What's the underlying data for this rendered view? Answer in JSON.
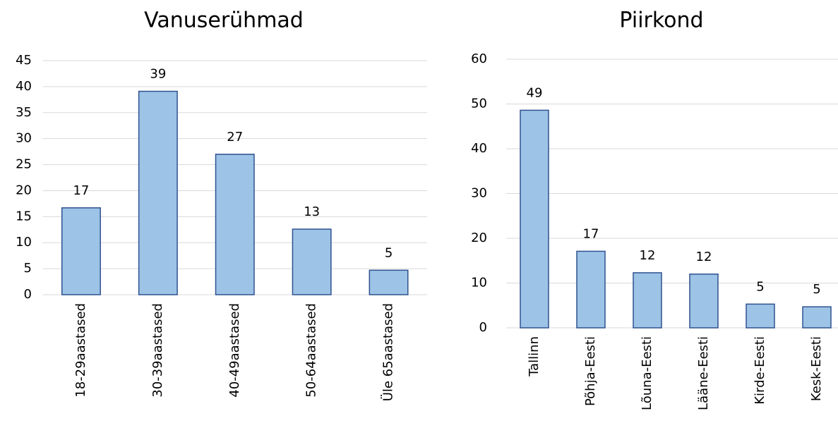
{
  "chart_data": [
    {
      "type": "bar",
      "title": "Vanuserühmad",
      "categories": [
        "18-29aastased",
        "30-39aastased",
        "40-49aastased",
        "50-64aastased",
        "Üle 65aastased"
      ],
      "values": [
        16.7,
        39.1,
        27,
        12.6,
        4.7
      ],
      "value_labels": [
        "17",
        "39",
        "27",
        "13",
        "5"
      ],
      "color": "#9dc3e6",
      "edge_color": "#2f528f",
      "ylim": [
        0,
        45
      ],
      "yticks": [
        0,
        5,
        10,
        15,
        20,
        25,
        30,
        35,
        40,
        45
      ],
      "grid": true
    },
    {
      "type": "bar",
      "title": "Piirkond",
      "categories": [
        "Tallinn",
        "Põhja-Eesti",
        "Lõuna-Eesti",
        "Lääne-Eesti",
        "Kirde-Eesti",
        "Kesk-Eesti"
      ],
      "values": [
        48.6,
        17.1,
        12.3,
        12.0,
        5.3,
        4.7
      ],
      "value_labels": [
        "49",
        "17",
        "12",
        "12",
        "5",
        "5"
      ],
      "color": "#9dc3e6",
      "edge_color": "#2f528f",
      "ylim": [
        0,
        60
      ],
      "yticks": [
        0,
        10,
        20,
        30,
        40,
        50,
        60
      ],
      "grid": true
    }
  ]
}
